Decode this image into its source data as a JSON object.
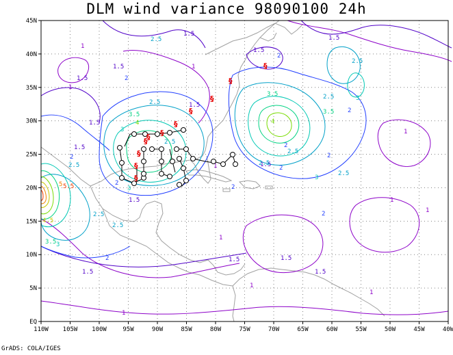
{
  "title": "DLM wind variance 98090100 24h",
  "credit": "GrADS: COLA/IGES",
  "x_ticks": [
    "110W",
    "105W",
    "100W",
    "95W",
    "90W",
    "85W",
    "80W",
    "75W",
    "70W",
    "65W",
    "60W",
    "55W",
    "50W",
    "45W",
    "40W"
  ],
  "y_ticks": [
    "45N",
    "40N",
    "35N",
    "30N",
    "25N",
    "20N",
    "15N",
    "10N",
    "5N",
    "EQ"
  ],
  "contour_labels": [
    "1",
    "1.5",
    "2",
    "2.5",
    "3",
    "3.5",
    "4",
    "4.5",
    "5",
    "5.5"
  ],
  "colors": {
    "c1": "#8c00c8",
    "c15": "#5000c8",
    "c2": "#1e3cff",
    "c25": "#00a0c8",
    "c3": "#00c8b4",
    "c35": "#00d282",
    "c4": "#78dc00",
    "c45": "#c8c800",
    "c5": "#f08200",
    "c55": "#f03c00",
    "land": "#a0a0a0",
    "track": "#000000",
    "storm": "#e60000"
  }
}
